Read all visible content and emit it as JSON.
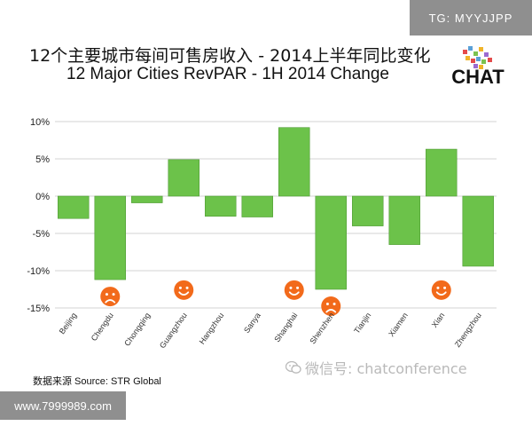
{
  "watermarks": {
    "tg": "TG: MYYJJPP",
    "site": "www.7999989.com",
    "wechat": "微信号: chatconference"
  },
  "logo": {
    "text": "CHAT"
  },
  "source_note": "数据来源  Source: STR Global",
  "colors": {
    "bar": "#6cc24a",
    "bar_edge": "#4f9b34",
    "grid": "#d3d3d3",
    "face": "#f26a1b"
  },
  "chart_data": {
    "type": "bar",
    "title": "12个主要城市每间可售房收入  -  2014上半年同比变化",
    "subtitle": "12 Major Cities RevPAR - 1H 2014 Change",
    "xlabel": "",
    "ylabel": "",
    "categories": [
      "Beijing",
      "Chengdu",
      "Chongqing",
      "Guangzhou",
      "Hangzhou",
      "Sanya",
      "Shanghai",
      "Shenzhen",
      "Tianjin",
      "Xiamen",
      "Xian",
      "Zhengzhou"
    ],
    "values": [
      -3.0,
      -11.2,
      -0.9,
      4.9,
      -2.7,
      -2.8,
      9.2,
      -12.5,
      -4.0,
      -6.5,
      6.3,
      -9.4
    ],
    "ylim": [
      -15,
      10
    ],
    "yticks": [
      "10%",
      "5%",
      "0%",
      "-5%",
      "-10%",
      "-15%"
    ],
    "ytick_values": [
      10,
      5,
      0,
      -5,
      -10,
      -15
    ],
    "grid": true,
    "annotations": [
      {
        "category": "Chengdu",
        "icon": "sad-face-icon"
      },
      {
        "category": "Guangzhou",
        "icon": "happy-face-icon"
      },
      {
        "category": "Shanghai",
        "icon": "happy-face-icon"
      },
      {
        "category": "Shenzhen",
        "icon": "sad-face-icon"
      },
      {
        "category": "Xian",
        "icon": "happy-face-icon"
      }
    ]
  }
}
